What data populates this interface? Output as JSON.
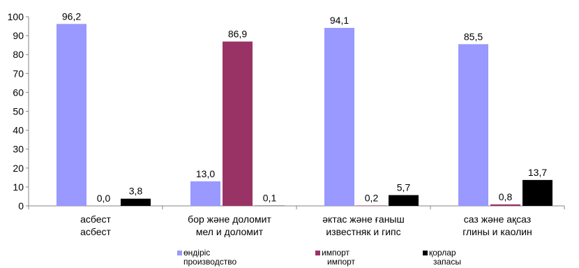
{
  "chart_data": {
    "type": "bar",
    "categories": [
      {
        "line1": "асбест",
        "line2": "асбест"
      },
      {
        "line1": "бор және доломит",
        "line2": "мел и доломит"
      },
      {
        "line1": "әктас және ғаныш",
        "line2": "известняк и гипс"
      },
      {
        "line1": "саз және ақсаз",
        "line2": "глины и каолин"
      }
    ],
    "series": [
      {
        "name_line1": "өндіріс",
        "name_line2": "производство",
        "color": "#9999ff",
        "values": [
          96.2,
          13.0,
          94.1,
          85.5
        ],
        "labels": [
          "96,2",
          "13,0",
          "94,1",
          "85,5"
        ]
      },
      {
        "name_line1": "импорт",
        "name_line2": "импорт",
        "color": "#993366",
        "values": [
          0.0,
          86.9,
          0.2,
          0.8
        ],
        "labels": [
          "0,0",
          "86,9",
          "0,2",
          "0,8"
        ]
      },
      {
        "name_line1": "қорлар",
        "name_line2": "запасы",
        "color": "#000000",
        "values": [
          3.8,
          0.1,
          5.7,
          13.7
        ],
        "labels": [
          "3,8",
          "0,1",
          "5,7",
          "13,7"
        ]
      }
    ],
    "ylim": [
      0,
      100
    ],
    "yticks": [
      "0",
      "10",
      "20",
      "30",
      "40",
      "50",
      "60",
      "70",
      "80",
      "90",
      "100"
    ],
    "grid": false,
    "legend_position": "bottom"
  }
}
